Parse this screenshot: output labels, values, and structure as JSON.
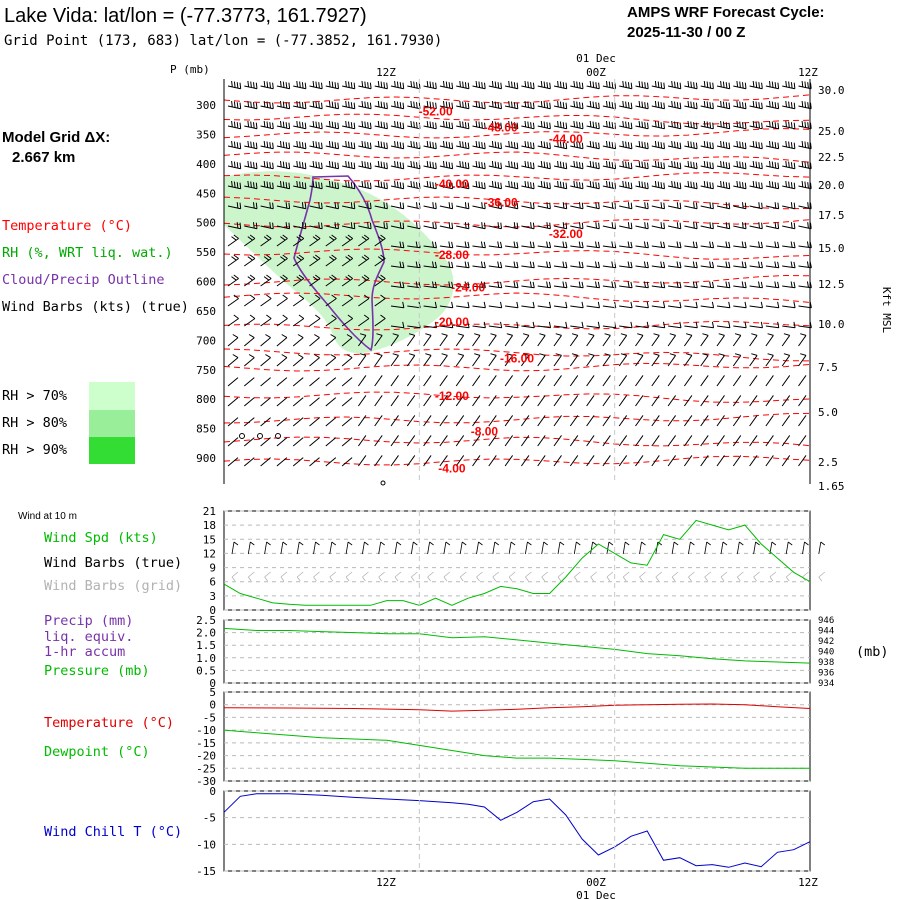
{
  "header": {
    "title": "Lake Vida:  lat/lon = (-77.3773, 161.7927)",
    "subtitle": "Grid Point (173, 683) lat/lon = (-77.3852, 161.7930)",
    "forecast_line1": "AMPS WRF Forecast Cycle:",
    "forecast_line2": "2025-11-30 / 00  Z"
  },
  "model_grid": {
    "label": "Model Grid ΔX:",
    "value": "2.667 km"
  },
  "legend": {
    "temperature": "Temperature (°C)",
    "rh": "RH (%, WRT liq. wat.)",
    "cloud": "Cloud/Precip Outline",
    "wind": "Wind Barbs (kts) (true)",
    "rh_levels": [
      {
        "label": "RH > 70%",
        "color": "#ccffcc"
      },
      {
        "label": "RH > 80%",
        "color": "#99ee99"
      },
      {
        "label": "RH > 90%",
        "color": "#33dd33"
      }
    ]
  },
  "colors": {
    "temperature": "#ff0000",
    "rh_legend": "#00aa00",
    "cloud": "#7733aa",
    "green_line": "#00bb00",
    "red_line": "#dd0000",
    "wind_chill_line": "#0000cc",
    "rh_fill_light": "#ccf5cc"
  },
  "chart_data": [
    {
      "type": "line",
      "panel": "pressure-time cross section",
      "ylabel": "P (mb)",
      "right_axis_label": "Kft MSL",
      "x_ticks": [
        "12Z",
        "00Z",
        "12Z"
      ],
      "x_date": "01 Dec",
      "y_ticks": [
        "300",
        "350",
        "400",
        "450",
        "500",
        "550",
        "600",
        "650",
        "700",
        "750",
        "800",
        "850",
        "900"
      ],
      "right_ticks": [
        "30.0",
        "25.0",
        "22.5",
        "20.0",
        "17.5",
        "15.0",
        "12.5",
        "10.0",
        "7.5",
        "5.0",
        "2.5",
        "1.65"
      ],
      "isotherm_labels": [
        {
          "text": "-52.00",
          "at": [
            "12Z+1h",
            311
          ]
        },
        {
          "text": "-48.00",
          "at": [
            "12Z+5h",
            338
          ]
        },
        {
          "text": "-44.00",
          "at": [
            "12Z+9h",
            358
          ]
        },
        {
          "text": "-40.00",
          "at": [
            "12Z+2h",
            434
          ]
        },
        {
          "text": "-36.00",
          "at": [
            "12Z+5h",
            466
          ]
        },
        {
          "text": "-32.00",
          "at": [
            "12Z+9h",
            519
          ]
        },
        {
          "text": "-28.00",
          "at": [
            "12Z+2h",
            555
          ]
        },
        {
          "text": "-24.00",
          "at": [
            "12Z+3h",
            610
          ]
        },
        {
          "text": "-20.00",
          "at": [
            "12Z+2h",
            669
          ]
        },
        {
          "text": "-16.00",
          "at": [
            "12Z+6h",
            731
          ]
        },
        {
          "text": "-12.00",
          "at": [
            "12Z+2h",
            795
          ]
        },
        {
          "text": "-8.00",
          "at": [
            "12Z+4h",
            855
          ]
        },
        {
          "text": "-4.00",
          "at": [
            "12Z+2h",
            918
          ]
        }
      ]
    },
    {
      "type": "line",
      "panel": "Wind at 10 m",
      "title": "Wind at 10 m",
      "legend": [
        "Wind Spd (kts)",
        "Wind Barbs (true)",
        "Wind Barbs (grid)"
      ],
      "y_ticks": [
        "0",
        "3",
        "6",
        "9",
        "12",
        "15",
        "18",
        "21"
      ],
      "ylim": [
        0,
        21
      ],
      "series": [
        {
          "name": "Wind Spd (kts)",
          "x": [
            0,
            1,
            2,
            3,
            4,
            5,
            6,
            7,
            8,
            9,
            10,
            11,
            12,
            13,
            14,
            15,
            16,
            17,
            18,
            19,
            20,
            21,
            22,
            23,
            24,
            25,
            26,
            27,
            28,
            29,
            30,
            31,
            32,
            33,
            34,
            35,
            36
          ],
          "values": [
            5.5,
            3.5,
            2.5,
            1.5,
            1.2,
            1.0,
            1.0,
            1.0,
            1.0,
            1.0,
            2.0,
            2.0,
            1.0,
            2.5,
            1.0,
            2.5,
            3.5,
            5.0,
            4.5,
            3.5,
            3.5,
            7.0,
            11,
            14,
            12,
            10,
            9.5,
            16,
            15,
            19,
            18,
            17,
            18,
            14,
            11,
            8,
            6
          ]
        }
      ]
    },
    {
      "type": "line",
      "panel": "Precip / Pressure",
      "legend": [
        "Precip (mm)",
        "liq. equiv.",
        "1-hr accum",
        "Pressure (mb)"
      ],
      "y_ticks": [
        "0",
        "0.5",
        "1.0",
        "1.5",
        "2.0",
        "2.5"
      ],
      "right_ticks": [
        "934",
        "936",
        "938",
        "940",
        "942",
        "944",
        "946"
      ],
      "right_unit": "(mb)",
      "series": [
        {
          "name": "Pressure (mb)",
          "x": [
            0,
            2,
            4,
            6,
            8,
            10,
            12,
            14,
            16,
            18,
            20,
            22,
            24,
            26,
            28,
            30,
            32,
            34,
            36
          ],
          "values": [
            944.4,
            944.0,
            944.0,
            943.8,
            943.6,
            943.4,
            943.4,
            942.6,
            942.8,
            942.2,
            941.6,
            941.0,
            940.4,
            939.6,
            939.2,
            938.6,
            938.2,
            938.0,
            937.8
          ]
        }
      ]
    },
    {
      "type": "line",
      "panel": "Temperature / Dewpoint",
      "legend": [
        "Temperature (°C)",
        "Dewpoint (°C)"
      ],
      "y_ticks": [
        "5",
        "0",
        "-5",
        "-10",
        "-15",
        "-20",
        "-25",
        "-30"
      ],
      "ylim": [
        -30,
        5
      ],
      "series": [
        {
          "name": "Temperature (°C)",
          "x": [
            0,
            4,
            8,
            12,
            14,
            16,
            18,
            20,
            22,
            24,
            26,
            28,
            30,
            32,
            34,
            36
          ],
          "values": [
            -1.2,
            -1.3,
            -1.5,
            -2.0,
            -2.5,
            -2.2,
            -1.8,
            -1.2,
            -0.8,
            -0.2,
            0.0,
            0.2,
            0.3,
            0.0,
            -0.8,
            -1.5
          ]
        },
        {
          "name": "Dewpoint (°C)",
          "x": [
            0,
            2,
            4,
            6,
            8,
            10,
            12,
            14,
            16,
            18,
            20,
            22,
            24,
            26,
            28,
            30,
            32,
            34,
            36
          ],
          "values": [
            -10,
            -11,
            -12,
            -13,
            -13.5,
            -14,
            -16,
            -18,
            -20,
            -21,
            -21,
            -21.5,
            -22,
            -23,
            -24,
            -24.5,
            -25,
            -25,
            -25
          ]
        }
      ]
    },
    {
      "type": "line",
      "panel": "Wind Chill",
      "legend": [
        "Wind Chill T (°C)"
      ],
      "y_ticks": [
        "0",
        "-5",
        "-10",
        "-15"
      ],
      "ylim": [
        -15,
        0
      ],
      "x_ticks": [
        "12Z",
        "00Z",
        "12Z"
      ],
      "x_date": "01 Dec",
      "series": [
        {
          "name": "Wind Chill T (°C)",
          "x": [
            0,
            1,
            2,
            4,
            6,
            8,
            10,
            12,
            14,
            15,
            16,
            17,
            18,
            19,
            20,
            21,
            22,
            23,
            24,
            25,
            26,
            27,
            28,
            29,
            30,
            31,
            32,
            33,
            34,
            35,
            36
          ],
          "values": [
            -4,
            -1,
            -0.5,
            -0.5,
            -0.8,
            -1.2,
            -1.5,
            -1.8,
            -2.2,
            -2.5,
            -3.0,
            -5.5,
            -4.0,
            -2.0,
            -1.5,
            -4.5,
            -9.0,
            -12.0,
            -10.5,
            -8.5,
            -7.5,
            -13,
            -12.5,
            -14,
            -13.8,
            -14.3,
            -13.5,
            -14.2,
            -11.5,
            -11.0,
            -9.5
          ]
        }
      ]
    }
  ]
}
